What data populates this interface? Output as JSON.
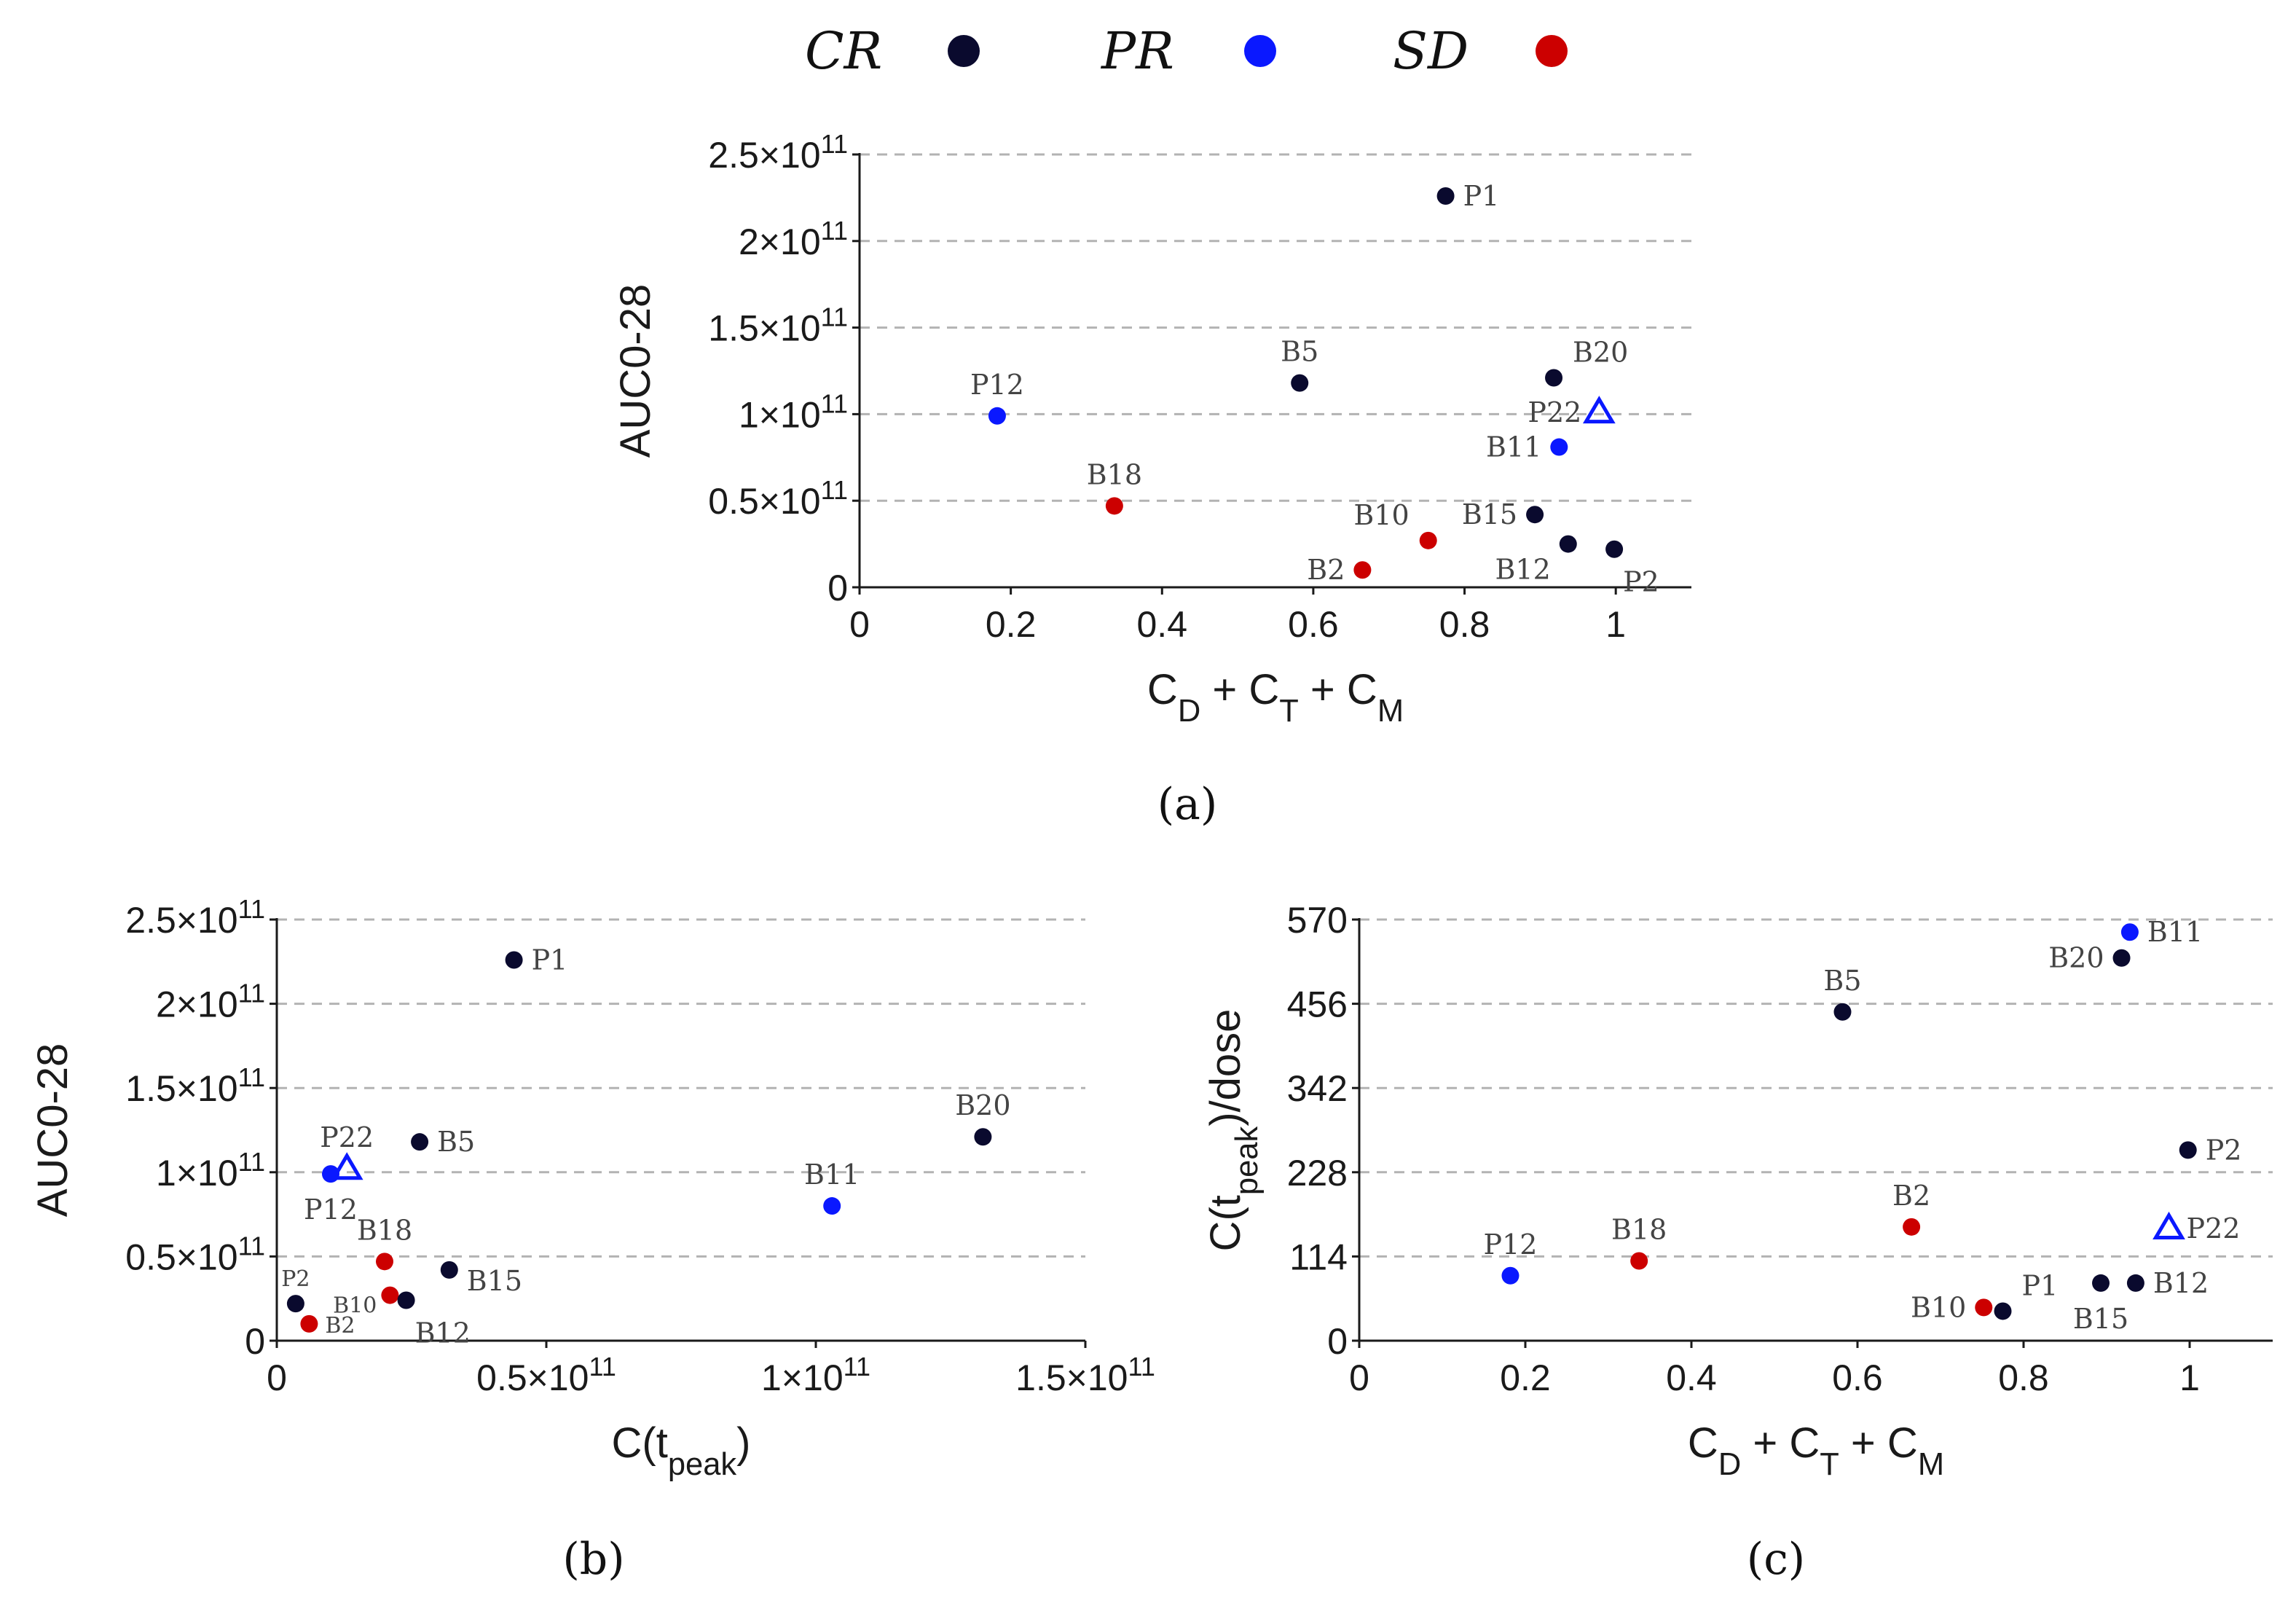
{
  "legend": [
    {
      "label": "CR",
      "color": "#0a0a2e"
    },
    {
      "label": "PR",
      "color": "#0a18ff"
    },
    {
      "label": "SD",
      "color": "#cc0000"
    }
  ],
  "colors": {
    "CR": "#0a0a2e",
    "PR": "#0a18ff",
    "SD": "#cc0000"
  },
  "chart_data": [
    {
      "id": "a",
      "caption": "(a)",
      "type": "scatter",
      "ylabel": "AUC0-28",
      "xlabel": "C_D + C_T + C_M",
      "xlim": [
        0,
        1.1
      ],
      "ylim": [
        0,
        250000000000
      ],
      "xticks": [
        0,
        0.2,
        0.4,
        0.6,
        0.8,
        1
      ],
      "xtick_labels": [
        "0",
        "0.2",
        "0.4",
        "0.6",
        "0.8",
        "1"
      ],
      "yticks": [
        0,
        50000000000,
        100000000000,
        150000000000,
        200000000000,
        250000000000
      ],
      "ytick_mantissa": [
        "0",
        "0.5×10",
        "1×10",
        "1.5×10",
        "2×10",
        "2.5×10"
      ],
      "ytick_exponent": [
        "",
        "11",
        "11",
        "11",
        "11",
        "11"
      ],
      "grid": "y-dashed",
      "points": [
        {
          "label": "P1",
          "group": "CR",
          "marker": "circle",
          "x": 0.775,
          "y": 226000000000,
          "pos": "right"
        },
        {
          "label": "B5",
          "group": "CR",
          "marker": "circle",
          "x": 0.582,
          "y": 118000000000,
          "pos": "top"
        },
        {
          "label": "B20",
          "group": "CR",
          "marker": "circle",
          "x": 0.918,
          "y": 121000000000,
          "pos": "top-right"
        },
        {
          "label": "P12",
          "group": "PR",
          "marker": "circle",
          "x": 0.182,
          "y": 99000000000,
          "pos": "top"
        },
        {
          "label": "P22",
          "group": "PR",
          "marker": "triangle",
          "x": 0.978,
          "y": 101000000000,
          "pos": "left"
        },
        {
          "label": "B11",
          "group": "PR",
          "marker": "circle",
          "x": 0.925,
          "y": 81000000000,
          "pos": "left"
        },
        {
          "label": "B18",
          "group": "SD",
          "marker": "circle",
          "x": 0.337,
          "y": 47000000000,
          "pos": "top"
        },
        {
          "label": "B15",
          "group": "CR",
          "marker": "circle",
          "x": 0.893,
          "y": 42000000000,
          "pos": "left"
        },
        {
          "label": "B10",
          "group": "SD",
          "marker": "circle",
          "x": 0.752,
          "y": 27000000000,
          "pos": "top-left"
        },
        {
          "label": "B12",
          "group": "CR",
          "marker": "circle",
          "x": 0.937,
          "y": 25000000000,
          "pos": "bottom-left"
        },
        {
          "label": "P2",
          "group": "CR",
          "marker": "circle",
          "x": 0.998,
          "y": 22000000000,
          "pos": "bottom-right"
        },
        {
          "label": "B2",
          "group": "SD",
          "marker": "circle",
          "x": 0.665,
          "y": 10000000000,
          "pos": "left"
        }
      ]
    },
    {
      "id": "b",
      "caption": "(b)",
      "type": "scatter",
      "ylabel": "AUC0-28",
      "xlabel": "C(t_peak)",
      "xlim": [
        0,
        150000000000
      ],
      "ylim": [
        0,
        250000000000
      ],
      "xticks": [
        0,
        50000000000,
        100000000000,
        150000000000
      ],
      "xtick_mantissa": [
        "0",
        "0.5×10",
        "1×10",
        "1.5×10"
      ],
      "xtick_exponent": [
        "",
        "11",
        "11",
        "11"
      ],
      "yticks": [
        0,
        50000000000,
        100000000000,
        150000000000,
        200000000000,
        250000000000
      ],
      "ytick_mantissa": [
        "0",
        "0.5×10",
        "1×10",
        "1.5×10",
        "2×10",
        "2.5×10"
      ],
      "ytick_exponent": [
        "",
        "11",
        "11",
        "11",
        "11",
        "11"
      ],
      "grid": "y-dashed",
      "points": [
        {
          "label": "P1",
          "group": "CR",
          "marker": "circle",
          "x": 44000000000,
          "y": 226000000000,
          "pos": "right"
        },
        {
          "label": "B20",
          "group": "CR",
          "marker": "circle",
          "x": 131000000000,
          "y": 121000000000,
          "pos": "top"
        },
        {
          "label": "B5",
          "group": "CR",
          "marker": "circle",
          "x": 26500000000,
          "y": 118000000000,
          "pos": "right"
        },
        {
          "label": "P22",
          "group": "PR",
          "marker": "triangle",
          "x": 13000000000,
          "y": 102000000000,
          "pos": "top"
        },
        {
          "label": "P12",
          "group": "PR",
          "marker": "circle",
          "x": 10000000000,
          "y": 99000000000,
          "pos": "bottom"
        },
        {
          "label": "B11",
          "group": "PR",
          "marker": "circle",
          "x": 103000000000,
          "y": 80000000000,
          "pos": "top"
        },
        {
          "label": "B18",
          "group": "SD",
          "marker": "circle",
          "x": 20000000000,
          "y": 47000000000,
          "pos": "top"
        },
        {
          "label": "B15",
          "group": "CR",
          "marker": "circle",
          "x": 32000000000,
          "y": 42000000000,
          "pos": "right-low"
        },
        {
          "label": "P2",
          "group": "CR",
          "marker": "circle",
          "x": 3500000000,
          "y": 22000000000,
          "pos": "top-small"
        },
        {
          "label": "B10",
          "group": "SD",
          "marker": "circle",
          "x": 21000000000,
          "y": 27000000000,
          "pos": "left-small"
        },
        {
          "label": "B12",
          "group": "CR",
          "marker": "circle",
          "x": 24000000000,
          "y": 24000000000,
          "pos": "bottom-right"
        },
        {
          "label": "B2",
          "group": "SD",
          "marker": "circle",
          "x": 6000000000,
          "y": 10000000000,
          "pos": "right-small"
        }
      ]
    },
    {
      "id": "c",
      "caption": "(c)",
      "type": "scatter",
      "ylabel": "C(t_peak)/dose",
      "xlabel": "C_D + C_T + C_M",
      "xlim": [
        0,
        1.1
      ],
      "ylim": [
        0,
        570
      ],
      "xticks": [
        0,
        0.2,
        0.4,
        0.6,
        0.8,
        1
      ],
      "xtick_labels": [
        "0",
        "0.2",
        "0.4",
        "0.6",
        "0.8",
        "1"
      ],
      "yticks": [
        0,
        114,
        228,
        342,
        456,
        570
      ],
      "ytick_labels": [
        "0",
        "114",
        "228",
        "342",
        "456",
        "570"
      ],
      "grid": "y-dashed",
      "points": [
        {
          "label": "B11",
          "group": "PR",
          "marker": "circle",
          "x": 0.928,
          "y": 553,
          "pos": "right"
        },
        {
          "label": "B20",
          "group": "CR",
          "marker": "circle",
          "x": 0.918,
          "y": 518,
          "pos": "left"
        },
        {
          "label": "B5",
          "group": "CR",
          "marker": "circle",
          "x": 0.582,
          "y": 445,
          "pos": "top"
        },
        {
          "label": "P2",
          "group": "CR",
          "marker": "circle",
          "x": 0.998,
          "y": 258,
          "pos": "right"
        },
        {
          "label": "B2",
          "group": "SD",
          "marker": "circle",
          "x": 0.665,
          "y": 154,
          "pos": "top"
        },
        {
          "label": "P22",
          "group": "PR",
          "marker": "triangle",
          "x": 0.975,
          "y": 152,
          "pos": "right"
        },
        {
          "label": "B18",
          "group": "SD",
          "marker": "circle",
          "x": 0.337,
          "y": 108,
          "pos": "top"
        },
        {
          "label": "P12",
          "group": "PR",
          "marker": "circle",
          "x": 0.182,
          "y": 88,
          "pos": "top"
        },
        {
          "label": "B12",
          "group": "CR",
          "marker": "circle",
          "x": 0.935,
          "y": 78,
          "pos": "right"
        },
        {
          "label": "B15",
          "group": "CR",
          "marker": "circle",
          "x": 0.893,
          "y": 78,
          "pos": "bottom"
        },
        {
          "label": "P1",
          "group": "CR",
          "marker": "circle",
          "x": 0.775,
          "y": 40,
          "pos": "top-right"
        },
        {
          "label": "B10",
          "group": "SD",
          "marker": "circle",
          "x": 0.752,
          "y": 45,
          "pos": "left"
        }
      ]
    }
  ]
}
